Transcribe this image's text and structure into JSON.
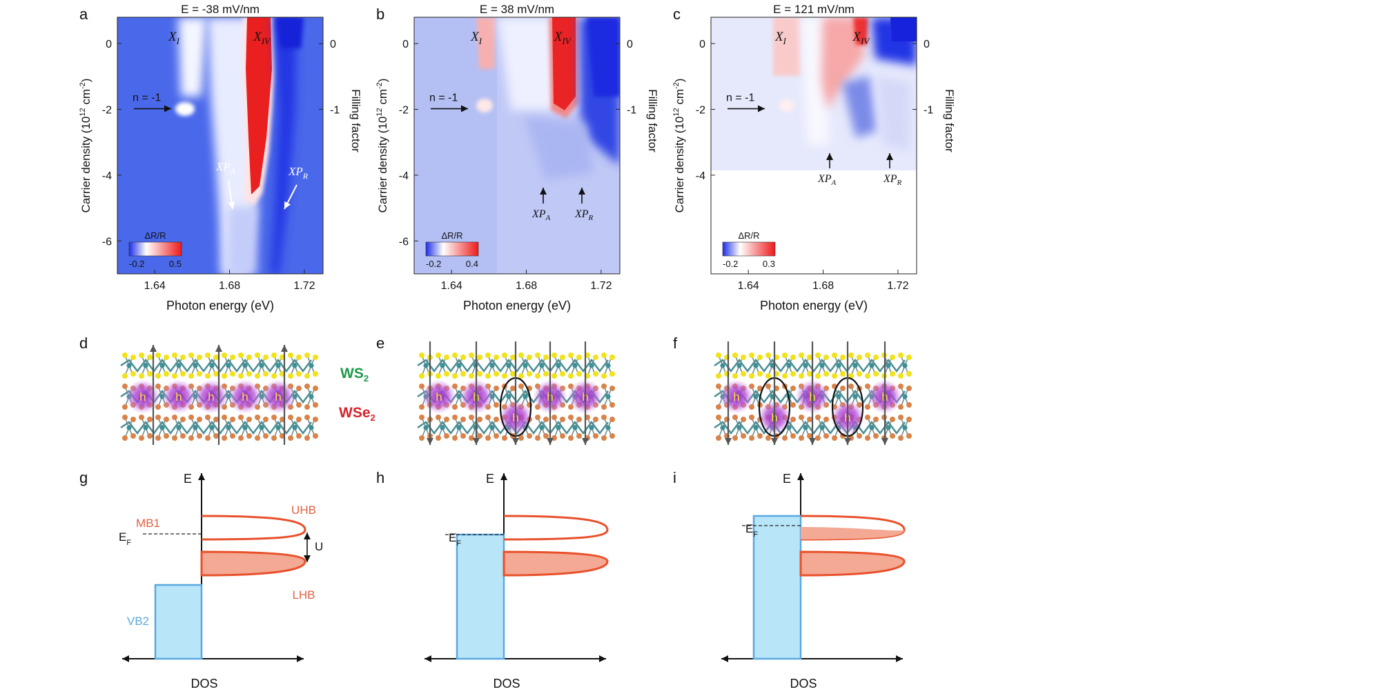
{
  "panel_labels": [
    "a",
    "b",
    "c",
    "d",
    "e",
    "f",
    "g",
    "h",
    "i"
  ],
  "heatmaps": [
    {
      "title": "E = -38 mV/nm",
      "colorbar_title": "ΔR/R",
      "colorbar_min": "-0.2",
      "colorbar_max": "0.5",
      "y_ticks": [
        "0",
        "-2",
        "-4",
        "-6"
      ],
      "right_ticks": [
        "0",
        "-1"
      ],
      "x_ticks": [
        "1.64",
        "1.68",
        "1.72"
      ],
      "xlabel": "Photon energy (eV)",
      "ylabel": "Carrier density (10",
      "ylabel_sup": "12",
      "ylabel_unit": " cm",
      "ylabel_unit_sup": "-2",
      "ylabel_close": ")",
      "right_label": "Filling factor",
      "annot_xi": "X",
      "annot_xi_sub": "I",
      "annot_xiv": "X",
      "annot_xiv_sub": "IV",
      "annot_n": "n = -1",
      "annot_xpa": "XP",
      "annot_xpa_sub": "A",
      "annot_xpr": "XP",
      "annot_xpr_sub": "R"
    },
    {
      "title": "E = 38 mV/nm",
      "colorbar_title": "ΔR/R",
      "colorbar_min": "-0.2",
      "colorbar_max": "0.4",
      "y_ticks": [
        "0",
        "-2",
        "-4",
        "-6"
      ],
      "right_ticks": [
        "0",
        "-1"
      ],
      "x_ticks": [
        "1.64",
        "1.68",
        "1.72"
      ],
      "xlabel": "Photon energy (eV)",
      "ylabel": "Carrier density (10",
      "ylabel_sup": "12",
      "ylabel_unit": " cm",
      "ylabel_unit_sup": "-2",
      "ylabel_close": ")",
      "right_label": "Filling factor",
      "annot_xi": "X",
      "annot_xi_sub": "I",
      "annot_xiv": "X",
      "annot_xiv_sub": "IV",
      "annot_n": "n = -1",
      "annot_xpa": "XP",
      "annot_xpa_sub": "A",
      "annot_xpr": "XP",
      "annot_xpr_sub": "R"
    },
    {
      "title": "E = 121 mV/nm",
      "colorbar_title": "ΔR/R",
      "colorbar_min": "-0.2",
      "colorbar_max": "0.3",
      "y_ticks": [
        "0",
        "-2",
        "-4"
      ],
      "right_ticks": [
        "0",
        "-1"
      ],
      "x_ticks": [
        "1.64",
        "1.68",
        "1.72"
      ],
      "xlabel": "Photon energy (eV)",
      "ylabel": "Carrier density (10",
      "ylabel_sup": "12",
      "ylabel_unit": " cm",
      "ylabel_unit_sup": "-2",
      "ylabel_close": ")",
      "right_label": "Filling factor",
      "annot_xi": "X",
      "annot_xi_sub": "I",
      "annot_xiv": "X",
      "annot_xiv_sub": "IV",
      "annot_n": "n = -1",
      "annot_xpa": "XP",
      "annot_xpa_sub": "A",
      "annot_xpr": "XP",
      "annot_xpr_sub": "R"
    }
  ],
  "structure": {
    "ws2": "WS",
    "ws2_sub": "2",
    "wse2": "WSe",
    "wse2_sub": "2",
    "hole": "h"
  },
  "dos": {
    "e_label": "E",
    "dos_label": "DOS",
    "ef": "E",
    "ef_sub": "F",
    "mb1": "MB1",
    "uhb": "UHB",
    "lhb": "LHB",
    "u": "U",
    "vb2": "VB2"
  },
  "colors": {
    "blue": "#3a4fe0",
    "red": "#e02020",
    "hubbard": "#e8502a",
    "vb_fill": "#b8e6f8",
    "vb_stroke": "#5aa8e0",
    "ws2_green": "#1d9a4a",
    "wse2_red": "#d4232a",
    "hole_purple": "#a63cc8"
  }
}
